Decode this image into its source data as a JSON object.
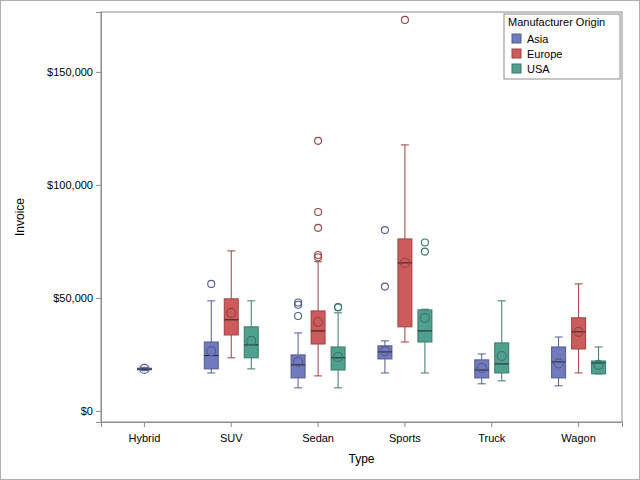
{
  "chart_data": {
    "type": "box",
    "x_label": "Type",
    "y_label": "Invoice",
    "legend_title": "Manufacturer Origin",
    "legend": "top-right",
    "categories": [
      "Hybrid",
      "SUV",
      "Sedan",
      "Sports",
      "Truck",
      "Wagon"
    ],
    "ylim": [
      -4900,
      176500
    ],
    "yticks": [
      {
        "value": 0,
        "label": "$0"
      },
      {
        "value": 50000,
        "label": "$50,000"
      },
      {
        "value": 100000,
        "label": "$100,000"
      },
      {
        "value": 150000,
        "label": "$150,000"
      }
    ],
    "series": [
      {
        "name": "Asia",
        "color": "#6f7bbd",
        "values": [
          {
            "min": 17800,
            "q1": 18200,
            "median": 18500,
            "q3": 18900,
            "max": 19300,
            "mean": 18600,
            "outliers": []
          },
          {
            "min": 16800,
            "q1": 18600,
            "median": 24500,
            "q3": 30500,
            "max": 48700,
            "mean": 26500,
            "outliers": [
              56200
            ]
          },
          {
            "min": 10200,
            "q1": 14600,
            "median": 20400,
            "q3": 24800,
            "max": 34500,
            "mean": 21700,
            "outliers": [
              48000,
              47000,
              42000
            ]
          },
          {
            "min": 16800,
            "q1": 23000,
            "median": 26100,
            "q3": 28800,
            "max": 31000,
            "mean": 26500,
            "outliers": [
              80000,
              55000
            ]
          },
          {
            "min": 12000,
            "q1": 14600,
            "median": 18100,
            "q3": 22600,
            "max": 25200,
            "mean": 19000,
            "outliers": []
          },
          {
            "min": 11100,
            "q1": 14600,
            "median": 21700,
            "q3": 28300,
            "max": 32700,
            "mean": 21000,
            "outliers": []
          }
        ]
      },
      {
        "name": "Europe",
        "color": "#cd5b5b",
        "values": [
          null,
          {
            "min": 23500,
            "q1": 33600,
            "median": 40300,
            "q3": 49600,
            "max": 70800,
            "mean": 43400,
            "outliers": []
          },
          {
            "min": 15500,
            "q1": 29600,
            "median": 35400,
            "q3": 44250,
            "max": 66000,
            "mean": 39400,
            "outliers": [
              119500,
              88000,
              81000,
              69000,
              68000
            ]
          },
          {
            "min": 30500,
            "q1": 37200,
            "median": 65500,
            "q3": 76100,
            "max": 117700,
            "mean": 65500,
            "outliers": [
              173000
            ]
          },
          null,
          {
            "min": 16800,
            "q1": 27400,
            "median": 35000,
            "q3": 41200,
            "max": 56200,
            "mean": 35000,
            "outliers": []
          }
        ]
      },
      {
        "name": "USA",
        "color": "#4fa08e",
        "values": [
          null,
          {
            "min": 18600,
            "q1": 23500,
            "median": 29200,
            "q3": 37200,
            "max": 48700,
            "mean": 31000,
            "outliers": []
          },
          {
            "min": 10200,
            "q1": 18100,
            "median": 23500,
            "q3": 28300,
            "max": 43400,
            "mean": 23900,
            "outliers": [
              46000,
              45800
            ]
          },
          {
            "min": 16800,
            "q1": 30500,
            "median": 35400,
            "q3": 44700,
            "max": 45000,
            "mean": 41200,
            "outliers": [
              74500,
              70500
            ]
          },
          {
            "min": 13300,
            "q1": 16800,
            "median": 20800,
            "q3": 30100,
            "max": 48700,
            "mean": 24300,
            "outliers": []
          },
          {
            "min": 16400,
            "q1": 16400,
            "median": 21200,
            "q3": 22100,
            "max": 28300,
            "mean": 20400,
            "outliers": []
          }
        ]
      }
    ]
  }
}
